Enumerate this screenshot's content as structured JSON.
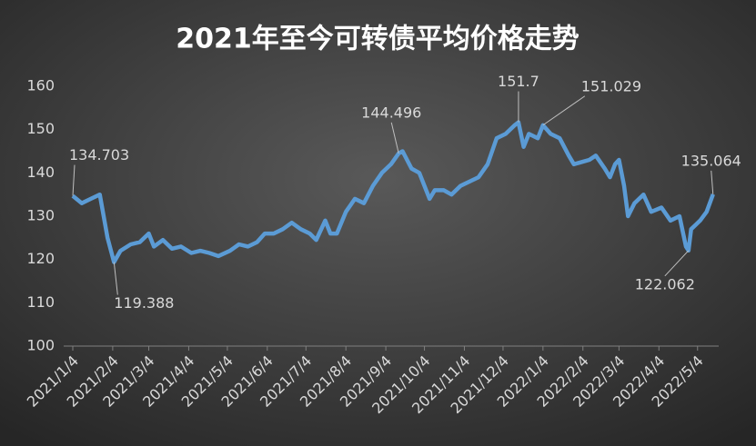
{
  "chart_data": {
    "type": "line",
    "title": "2021年至今可转债平均价格走势",
    "ylim": [
      100,
      160
    ],
    "yticks": [
      100,
      110,
      120,
      130,
      140,
      150,
      160
    ],
    "xticks": [
      "2021/1/4",
      "2021/2/4",
      "2021/3/4",
      "2021/4/4",
      "2021/5/4",
      "2021/6/4",
      "2021/7/4",
      "2021/8/4",
      "2021/9/4",
      "2021/10/4",
      "2021/11/4",
      "2021/12/4",
      "2022/1/4",
      "2022/2/4",
      "2022/3/4",
      "2022/4/4",
      "2022/5/4"
    ],
    "x": [
      "2021/1/4",
      "2021/1/11",
      "2021/1/18",
      "2021/1/25",
      "2021/1/31",
      "2021/2/5",
      "2021/2/10",
      "2021/2/18",
      "2021/2/25",
      "2021/3/4",
      "2021/3/8",
      "2021/3/15",
      "2021/3/22",
      "2021/3/29",
      "2021/4/6",
      "2021/4/13",
      "2021/4/20",
      "2021/4/27",
      "2021/5/6",
      "2021/5/13",
      "2021/5/20",
      "2021/5/27",
      "2021/6/2",
      "2021/6/9",
      "2021/6/16",
      "2021/6/23",
      "2021/6/30",
      "2021/7/7",
      "2021/7/12",
      "2021/7/19",
      "2021/7/23",
      "2021/7/28",
      "2021/8/4",
      "2021/8/11",
      "2021/8/18",
      "2021/8/25",
      "2021/9/1",
      "2021/9/8",
      "2021/9/14",
      "2021/9/17",
      "2021/9/24",
      "2021/9/30",
      "2021/10/8",
      "2021/10/12",
      "2021/10/19",
      "2021/10/25",
      "2021/11/1",
      "2021/11/8",
      "2021/11/15",
      "2021/11/22",
      "2021/11/29",
      "2021/12/6",
      "2021/12/13",
      "2021/12/16",
      "2021/12/20",
      "2021/12/24",
      "2021/12/31",
      "2022/1/4",
      "2022/1/10",
      "2022/1/17",
      "2022/1/24",
      "2022/1/28",
      "2022/2/9",
      "2022/2/14",
      "2022/2/21",
      "2022/2/25",
      "2022/3/1",
      "2022/3/4",
      "2022/3/8",
      "2022/3/11",
      "2022/3/16",
      "2022/3/23",
      "2022/3/29",
      "2022/4/6",
      "2022/4/13",
      "2022/4/20",
      "2022/4/25",
      "2022/4/27",
      "2022/4/29",
      "2022/5/6",
      "2022/5/11",
      "2022/5/16"
    ],
    "series": [
      {
        "color": "#5b9bd5",
        "values": [
          134.703,
          133,
          134,
          135,
          125,
          119.388,
          122,
          123.5,
          124,
          126,
          123,
          124.5,
          122.5,
          123,
          121.5,
          122,
          121.5,
          120.8,
          122,
          123.5,
          123,
          124,
          126,
          126,
          127,
          128.5,
          127,
          126,
          124.5,
          129,
          126,
          126,
          131,
          134,
          133,
          137,
          140,
          142,
          144.496,
          145,
          141,
          140,
          134,
          136,
          136,
          135,
          137,
          138,
          139,
          142,
          148,
          149,
          151,
          151.7,
          146,
          149,
          148,
          151.029,
          149,
          148,
          144,
          142,
          143,
          144,
          141,
          139,
          142,
          143,
          137,
          130,
          133,
          135,
          131,
          132,
          129,
          130,
          123,
          122.062,
          127,
          129,
          131,
          135.064
        ]
      }
    ],
    "annotations": [
      {
        "x": "2021/1/4",
        "value": 134.703
      },
      {
        "x": "2021/2/5",
        "value": 119.388
      },
      {
        "x": "2021/9/14",
        "value": 144.496
      },
      {
        "x": "2021/12/16",
        "value": 151.7
      },
      {
        "x": "2022/1/4",
        "value": 151.029
      },
      {
        "x": "2022/4/27",
        "value": 122.062
      },
      {
        "x": "2022/5/16",
        "value": 135.064
      }
    ]
  }
}
